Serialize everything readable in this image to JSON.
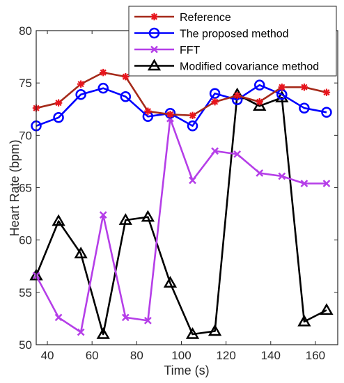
{
  "chart_data": {
    "type": "line",
    "title": "",
    "xlabel": "Time (s)",
    "ylabel": "Heart Rate (bpm)",
    "xlim": [
      35,
      170
    ],
    "ylim": [
      50,
      80
    ],
    "xticks": [
      40,
      60,
      80,
      100,
      120,
      140,
      160
    ],
    "yticks": [
      50,
      55,
      60,
      65,
      70,
      75,
      80
    ],
    "grid": false,
    "legend_position": "top-right",
    "series": [
      {
        "name": "Reference",
        "color": "#a52a1a",
        "marker_color": "#e8141c",
        "marker": "asterisk",
        "x": [
          35,
          45,
          55,
          65,
          75,
          85,
          95,
          105,
          115,
          125,
          135,
          145,
          155,
          165
        ],
        "y": [
          72.6,
          73.1,
          74.9,
          76.0,
          75.6,
          72.3,
          72.0,
          71.9,
          73.2,
          73.8,
          73.2,
          74.6,
          74.6,
          74.1
        ]
      },
      {
        "name": "The proposed method",
        "color": "#0000ff",
        "marker": "circle",
        "x": [
          35,
          45,
          55,
          65,
          75,
          85,
          95,
          105,
          115,
          125,
          135,
          145,
          155,
          165
        ],
        "y": [
          70.9,
          71.7,
          73.9,
          74.5,
          73.7,
          71.8,
          72.1,
          70.9,
          74.0,
          73.4,
          74.8,
          73.9,
          72.6,
          72.2
        ]
      },
      {
        "name": "FFT",
        "color": "#b53ee8",
        "marker": "x",
        "x": [
          35,
          45,
          55,
          65,
          75,
          85,
          95,
          105,
          115,
          125,
          135,
          145,
          155,
          165
        ],
        "y": [
          56.6,
          52.6,
          51.2,
          62.4,
          52.6,
          52.3,
          71.6,
          65.7,
          68.5,
          68.2,
          66.4,
          66.1,
          65.4,
          65.4
        ]
      },
      {
        "name": "Modified covariance method",
        "color": "#000000",
        "marker": "triangle",
        "x": [
          35,
          45,
          55,
          65,
          75,
          85,
          95,
          105,
          115,
          125,
          135,
          145,
          155,
          165
        ],
        "y": [
          56.6,
          61.8,
          58.7,
          51.0,
          61.9,
          62.2,
          55.9,
          51.0,
          51.3,
          73.9,
          72.8,
          73.6,
          52.2,
          53.3
        ]
      }
    ]
  }
}
